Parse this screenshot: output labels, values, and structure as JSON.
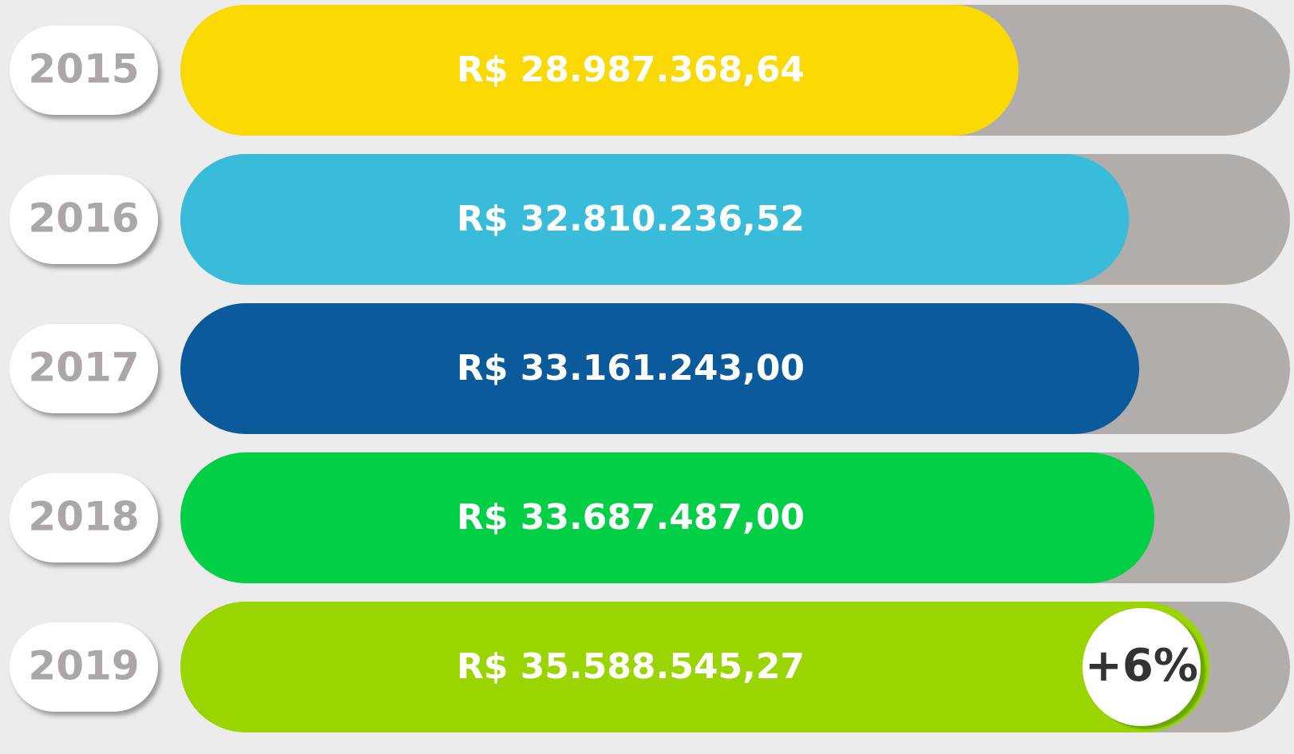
{
  "chart_data": {
    "type": "bar",
    "categories": [
      "2015",
      "2016",
      "2017",
      "2018",
      "2019"
    ],
    "values": [
      28987368.64,
      32810236.52,
      33161243.0,
      33687487.0,
      35588545.27
    ],
    "value_labels": [
      "R$ 28.987.368,64",
      "R$ 32.810.236,52",
      "R$ 33.161.243,00",
      "R$ 33.687.487,00",
      "R$ 35.588.545,27"
    ],
    "colors": [
      "#fbd905",
      "#39bcd9",
      "#0a5a9c",
      "#01cf46",
      "#9ad500"
    ],
    "annotation": "+6%"
  }
}
